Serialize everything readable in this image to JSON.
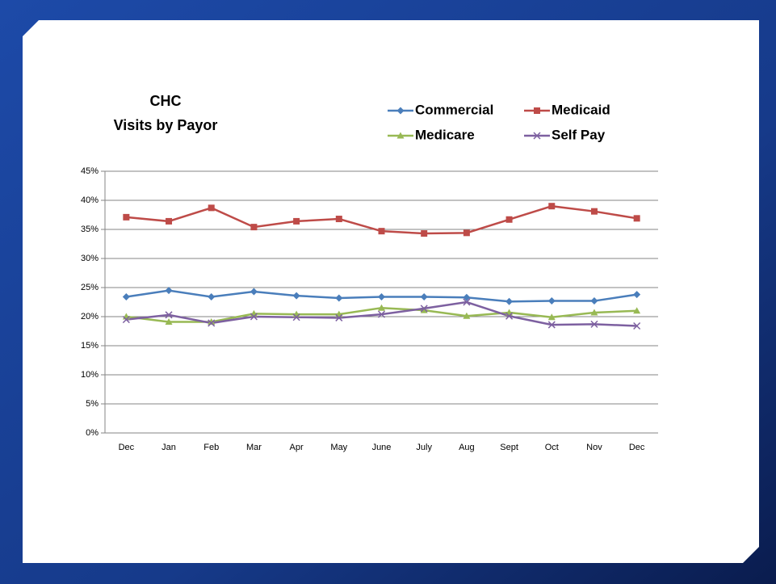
{
  "chart_data": {
    "type": "line",
    "title": "CHC",
    "subtitle": "Visits by Payor",
    "categories": [
      "Dec",
      "Jan",
      "Feb",
      "Mar",
      "Apr",
      "May",
      "June",
      "July",
      "Aug",
      "Sept",
      "Oct",
      "Nov",
      "Dec"
    ],
    "series": [
      {
        "name": "Commercial",
        "color": "#4a7ebb",
        "marker": "diamond",
        "values": [
          23.4,
          24.5,
          23.4,
          24.3,
          23.6,
          23.2,
          23.4,
          23.4,
          23.3,
          22.6,
          22.7,
          22.7,
          23.8
        ]
      },
      {
        "name": "Medicaid",
        "color": "#be4b48",
        "marker": "square",
        "values": [
          37.1,
          36.4,
          38.7,
          35.4,
          36.4,
          36.8,
          34.7,
          34.3,
          34.4,
          36.7,
          39.0,
          38.1,
          36.9
        ]
      },
      {
        "name": "Medicare",
        "color": "#98b954",
        "marker": "triangle",
        "values": [
          20.0,
          19.1,
          19.1,
          20.5,
          20.4,
          20.4,
          21.5,
          21.1,
          20.1,
          20.7,
          19.9,
          20.7,
          21.0
        ]
      },
      {
        "name": "Self Pay",
        "color": "#7d60a0",
        "marker": "x",
        "values": [
          19.5,
          20.3,
          18.9,
          20.0,
          19.9,
          19.8,
          20.4,
          21.4,
          22.5,
          20.1,
          18.6,
          18.7,
          18.4
        ]
      }
    ],
    "ylim": [
      0,
      45
    ],
    "yticks": [
      {
        "value": 0,
        "label": "0%"
      },
      {
        "value": 5,
        "label": "5%"
      },
      {
        "value": 10,
        "label": "10%"
      },
      {
        "value": 15,
        "label": "15%"
      },
      {
        "value": 20,
        "label": "20%"
      },
      {
        "value": 25,
        "label": "25%"
      },
      {
        "value": 30,
        "label": "30%"
      },
      {
        "value": 35,
        "label": "35%"
      },
      {
        "value": 40,
        "label": "40%"
      },
      {
        "value": 45,
        "label": "45%"
      }
    ],
    "grid": true
  }
}
